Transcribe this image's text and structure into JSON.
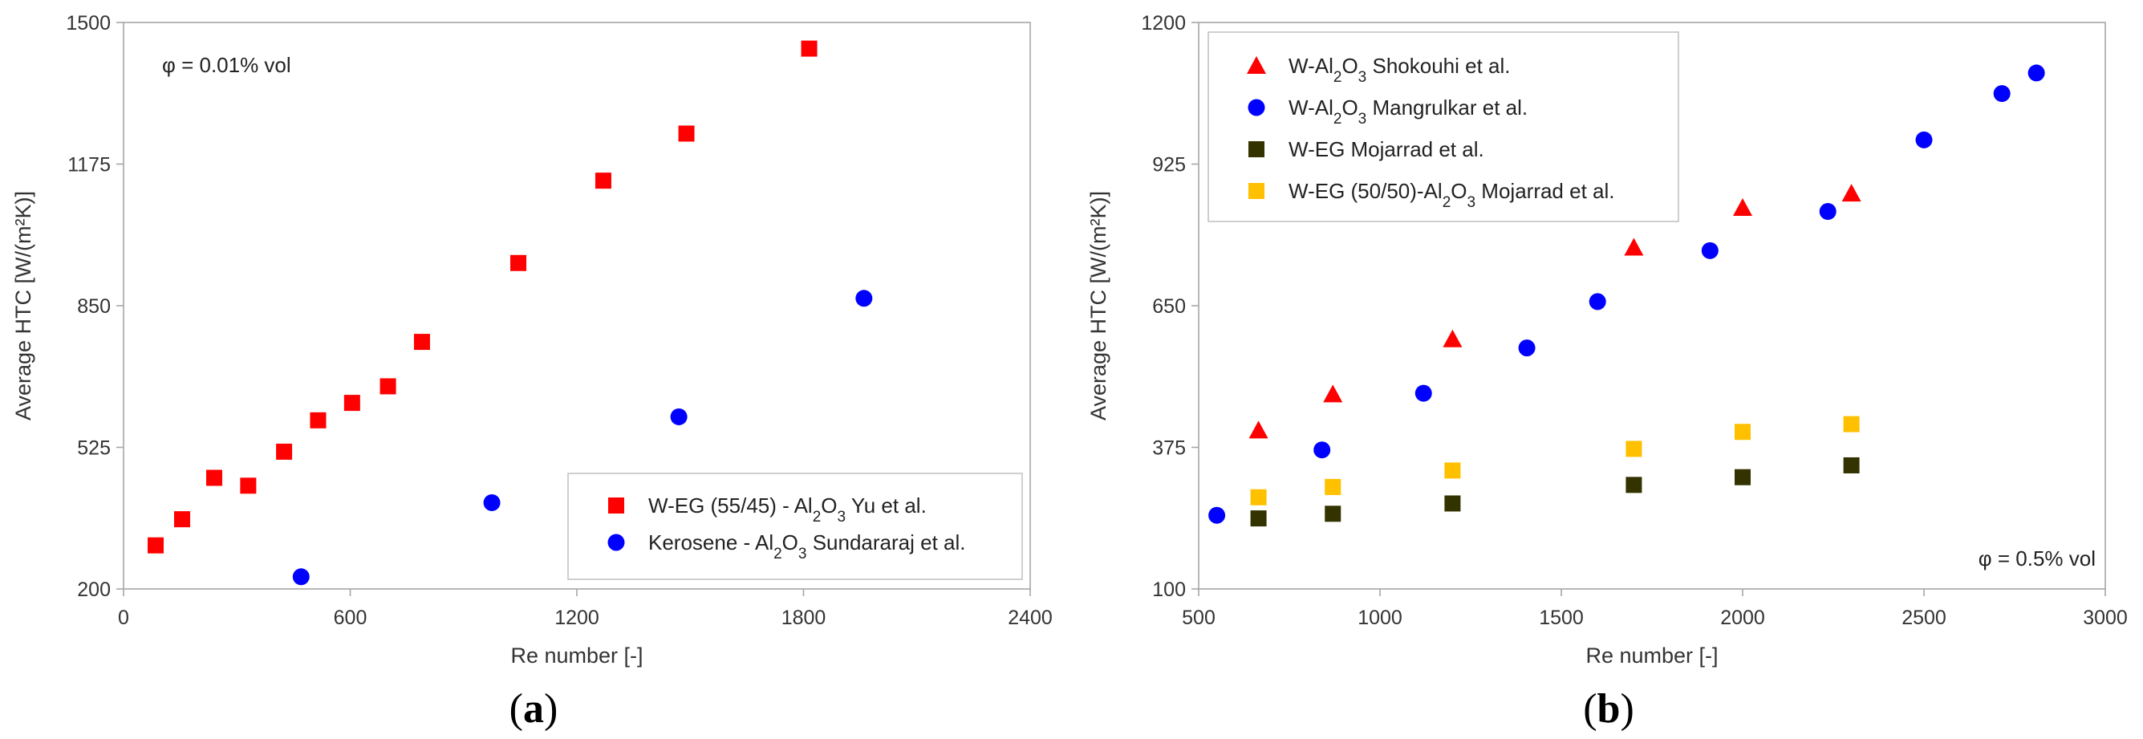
{
  "chart_data": [
    {
      "type": "scatter",
      "panel_label": "a",
      "annotation": "φ = 0.01% vol",
      "xlabel": "Re number [-]",
      "ylabel": "Average HTC [W/(m²K)]",
      "xlim": [
        0,
        2400
      ],
      "ylim": [
        200,
        1500
      ],
      "xticks": [
        0,
        600,
        1200,
        1800,
        2400
      ],
      "yticks": [
        200,
        525,
        850,
        1175,
        1500
      ],
      "legend_position": "bottom-right",
      "series": [
        {
          "name": "W-EG (55/45) - Al2O3 Yu et al.",
          "legend_parts": [
            "W-EG (55/45) - Al",
            "2",
            "O",
            "3",
            " Yu et al."
          ],
          "marker": "square",
          "color": "#ff0000",
          "points": [
            [
              85,
              300
            ],
            [
              155,
              360
            ],
            [
              240,
              455
            ],
            [
              330,
              437
            ],
            [
              425,
              515
            ],
            [
              515,
              587
            ],
            [
              605,
              627
            ],
            [
              700,
              665
            ],
            [
              790,
              767
            ],
            [
              1045,
              948
            ],
            [
              1270,
              1137
            ],
            [
              1490,
              1245
            ],
            [
              1815,
              1440
            ]
          ]
        },
        {
          "name": "Kerosene - Al2O3 Sundararaj et al.",
          "legend_parts": [
            "Kerosene - Al",
            "2",
            "O",
            "3",
            " Sundararaj et al."
          ],
          "marker": "circle",
          "color": "#0000ff",
          "points": [
            [
              470,
              228
            ],
            [
              975,
              398
            ],
            [
              1470,
              595
            ],
            [
              1960,
              867
            ]
          ]
        }
      ]
    },
    {
      "type": "scatter",
      "panel_label": "b",
      "annotation": "φ = 0.5% vol",
      "xlabel": "Re number [-]",
      "ylabel": "Average HTC [W/(m²K)]",
      "xlim": [
        500,
        3000
      ],
      "ylim": [
        100,
        1200
      ],
      "xticks": [
        500,
        1000,
        1500,
        2000,
        2500,
        3000
      ],
      "yticks": [
        100,
        375,
        650,
        925,
        1200
      ],
      "legend_position": "top-left",
      "series": [
        {
          "name": "W-Al2O3 Shokouhi et al.",
          "legend_parts": [
            "W-Al",
            "2",
            "O",
            "3",
            " Shokouhi et al."
          ],
          "marker": "triangle",
          "color": "#ff0000",
          "points": [
            [
              665,
              408
            ],
            [
              870,
              478
            ],
            [
              1200,
              585
            ],
            [
              1700,
              763
            ],
            [
              2000,
              840
            ],
            [
              2300,
              868
            ]
          ]
        },
        {
          "name": "W-Al2O3 Mangrulkar et al.",
          "legend_parts": [
            "W-Al",
            "2",
            "O",
            "3",
            " Mangrulkar et al."
          ],
          "marker": "circle",
          "color": "#0000ff",
          "points": [
            [
              550,
              243
            ],
            [
              840,
              370
            ],
            [
              1120,
              480
            ],
            [
              1405,
              568
            ],
            [
              1600,
              658
            ],
            [
              1910,
              757
            ],
            [
              2235,
              833
            ],
            [
              2500,
              972
            ],
            [
              2715,
              1062
            ],
            [
              2810,
              1102
            ]
          ]
        },
        {
          "name": "W-EG Mojarrad et al.",
          "legend_parts": [
            "W-EG Mojarrad et al."
          ],
          "marker": "square",
          "color": "#333300",
          "points": [
            [
              665,
              237
            ],
            [
              870,
              246
            ],
            [
              1200,
              266
            ],
            [
              1700,
              302
            ],
            [
              2000,
              317
            ],
            [
              2300,
              340
            ]
          ]
        },
        {
          "name": "W-EG (50/50)-Al2O3 Mojarrad et al.",
          "legend_parts": [
            "W-EG (50/50)-Al",
            "2",
            "O",
            "3",
            " Mojarrad et al."
          ],
          "marker": "square",
          "color": "#ffc000",
          "points": [
            [
              665,
              278
            ],
            [
              870,
              298
            ],
            [
              1200,
              330
            ],
            [
              1700,
              372
            ],
            [
              2000,
              405
            ],
            [
              2300,
              420
            ]
          ]
        }
      ]
    }
  ]
}
